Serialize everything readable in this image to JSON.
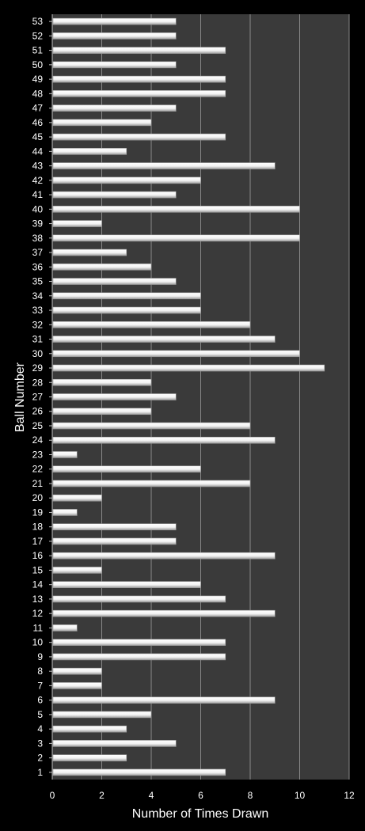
{
  "chart_data": {
    "type": "bar",
    "orientation": "horizontal",
    "xlabel": "Number of Times Drawn",
    "ylabel": "Ball Number",
    "xlim": [
      0,
      12
    ],
    "xticks": [
      0,
      2,
      4,
      6,
      8,
      10,
      12
    ],
    "grid": "vertical",
    "legend": "none",
    "colors": {
      "background": "#000000",
      "plot_area": "#3a3a3a",
      "gridline": "#8a8a8a",
      "bar": "#f2f2f2",
      "bar_edge": "#9a9a9a",
      "text": "#ffffff"
    },
    "categories": [
      "1",
      "2",
      "3",
      "4",
      "5",
      "6",
      "7",
      "8",
      "9",
      "10",
      "11",
      "12",
      "13",
      "14",
      "15",
      "16",
      "17",
      "18",
      "19",
      "20",
      "21",
      "22",
      "23",
      "24",
      "25",
      "26",
      "27",
      "28",
      "29",
      "30",
      "31",
      "32",
      "33",
      "34",
      "35",
      "36",
      "37",
      "38",
      "39",
      "40",
      "41",
      "42",
      "43",
      "44",
      "45",
      "46",
      "47",
      "48",
      "49",
      "50",
      "51",
      "52",
      "53"
    ],
    "values": [
      7,
      3,
      5,
      3,
      4,
      9,
      2,
      2,
      7,
      7,
      1,
      9,
      7,
      6,
      2,
      9,
      5,
      5,
      1,
      2,
      8,
      6,
      1,
      9,
      8,
      4,
      5,
      4,
      11,
      10,
      9,
      8,
      6,
      6,
      5,
      4,
      3,
      10,
      2,
      10,
      5,
      6,
      9,
      3,
      7,
      4,
      5,
      7,
      7,
      5,
      7,
      5,
      5
    ]
  }
}
